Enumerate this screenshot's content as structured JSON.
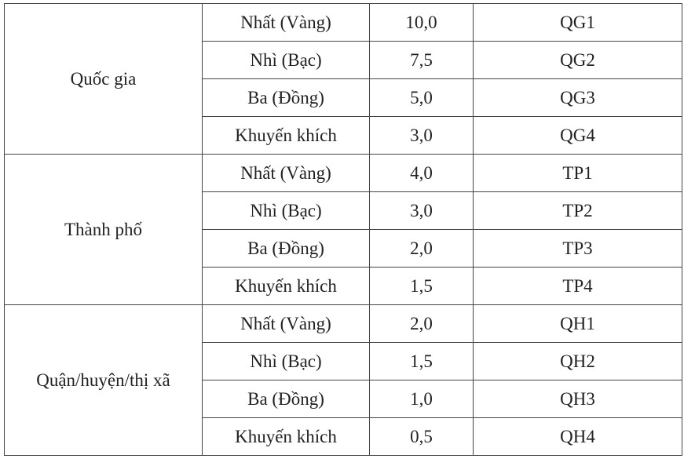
{
  "groups": [
    {
      "level": "Quốc gia",
      "rows": [
        {
          "prize": "Nhất (Vàng)",
          "score": "10,0",
          "code": "QG1"
        },
        {
          "prize": "Nhì (Bạc)",
          "score": "7,5",
          "code": "QG2"
        },
        {
          "prize": "Ba (Đồng)",
          "score": "5,0",
          "code": "QG3"
        },
        {
          "prize": "Khuyến khích",
          "score": "3,0",
          "code": "QG4"
        }
      ]
    },
    {
      "level": "Thành phố",
      "rows": [
        {
          "prize": "Nhất (Vàng)",
          "score": "4,0",
          "code": "TP1"
        },
        {
          "prize": "Nhì (Bạc)",
          "score": "3,0",
          "code": "TP2"
        },
        {
          "prize": "Ba (Đồng)",
          "score": "2,0",
          "code": "TP3"
        },
        {
          "prize": "Khuyến khích",
          "score": "1,5",
          "code": "TP4"
        }
      ]
    },
    {
      "level": "Quận/huyện/thị xã",
      "rows": [
        {
          "prize": "Nhất (Vàng)",
          "score": "2,0",
          "code": "QH1"
        },
        {
          "prize": "Nhì (Bạc)",
          "score": "1,5",
          "code": "QH2"
        },
        {
          "prize": "Ba (Đồng)",
          "score": "1,0",
          "code": "QH3"
        },
        {
          "prize": "Khuyến khích",
          "score": "0,5",
          "code": "QH4"
        }
      ]
    }
  ]
}
